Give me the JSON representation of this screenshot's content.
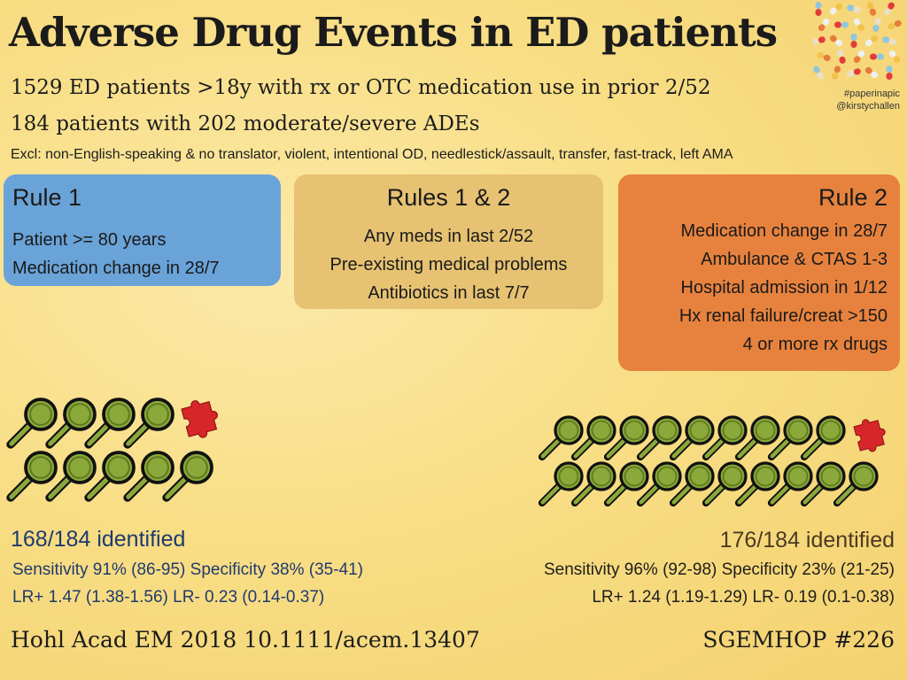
{
  "header": {
    "title": "Adverse Drug Events in ED patients",
    "line1": "1529 ED patients >18y with rx or OTC medication use in prior 2/52",
    "line2": "184 patients with 202 moderate/severe ADEs",
    "exclusions": "Excl: non-English-speaking & no translator, violent, intentional OD, needlestick/assault, transfer, fast-track, left AMA",
    "hashtag": "#paperinapic",
    "handle": "@kirstychallen",
    "image_icon": "pills-collage-icon"
  },
  "boxes": {
    "rule1": {
      "title": "Rule 1",
      "items": [
        "Patient >= 80 years",
        "Medication change in 28/7"
      ],
      "color": "#6aa3d8"
    },
    "both": {
      "title": "Rules 1 & 2",
      "items": [
        "Any meds in last 2/52",
        "Pre-existing medical problems",
        "Antibiotics in last 7/7"
      ],
      "color": "#e6c272"
    },
    "rule2": {
      "title": "Rule 2",
      "items": [
        "Medication change in 28/7",
        "Ambulance & CTAS 1-3",
        "Hospital admission in 1/12",
        "Hx renal failure/creat >150",
        "4 or more rx drugs"
      ],
      "color": "#e7823e"
    }
  },
  "icons": {
    "found_icon": "magnifying-glass-icon",
    "missed_icon": "puzzle-piece-icon",
    "found_color": "#8ba83a",
    "missed_color": "#d7262a",
    "left": {
      "found": 9,
      "missed": 1
    },
    "right": {
      "found": 19,
      "missed": 1
    }
  },
  "results": {
    "rule1": {
      "identified": "168/184 identified",
      "sens_spec": "Sensitivity 91% (86-95) Specificity 38% (35-41)",
      "lr": "LR+ 1.47 (1.38-1.56) LR- 0.23 (0.14-0.37)"
    },
    "rule2": {
      "identified": "176/184 identified",
      "sens_spec": "Sensitivity 96% (92-98) Specificity 23% (21-25)",
      "lr": "LR+ 1.24 (1.19-1.29) LR- 0.19 (0.1-0.38)"
    }
  },
  "footer": {
    "citation": "Hohl Acad EM 2018 10.1111/acem.13407",
    "tag": "SGEMHOP #226"
  }
}
